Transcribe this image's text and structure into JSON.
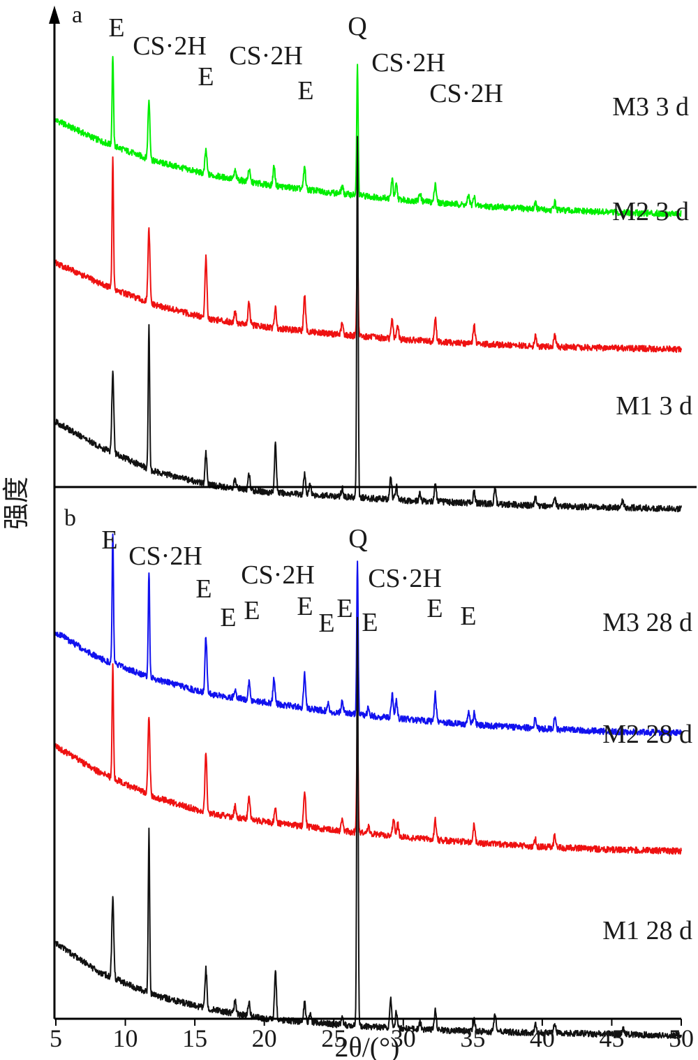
{
  "chart_data": {
    "type": "line",
    "xlabel": "2θ/(°)",
    "ylabel": "强度",
    "xlim": [
      5,
      50
    ],
    "x_ticks": [
      5,
      10,
      15,
      20,
      25,
      30,
      35,
      40,
      45,
      50
    ],
    "grid": false,
    "panels": [
      {
        "label": "a",
        "series": [
          {
            "name": "M3 3 d",
            "color": "#00ee00",
            "baseline": [
              [
                5,
                0.79
              ],
              [
                8,
                0.65
              ],
              [
                12,
                0.5
              ],
              [
                16,
                0.4
              ],
              [
                20,
                0.33
              ],
              [
                25,
                0.27
              ],
              [
                30,
                0.22
              ],
              [
                35,
                0.18
              ],
              [
                40,
                0.15
              ],
              [
                45,
                0.13
              ],
              [
                50,
                0.12
              ]
            ],
            "peaks": [
              [
                9.1,
                0.65
              ],
              [
                11.7,
                0.42
              ],
              [
                15.8,
                0.17
              ],
              [
                17.9,
                0.06
              ],
              [
                18.9,
                0.09
              ],
              [
                20.7,
                0.14
              ],
              [
                22.9,
                0.16
              ],
              [
                25.6,
                0.05
              ],
              [
                26.7,
                0.93
              ],
              [
                29.2,
                0.14
              ],
              [
                29.5,
                0.1
              ],
              [
                31.2,
                0.06
              ],
              [
                32.3,
                0.14
              ],
              [
                34.7,
                0.07
              ],
              [
                35.1,
                0.06
              ],
              [
                39.5,
                0.05
              ],
              [
                40.9,
                0.06
              ]
            ]
          },
          {
            "name": "M2 3 d",
            "color": "#ee1111",
            "baseline": [
              [
                5,
                0.87
              ],
              [
                8,
                0.73
              ],
              [
                12,
                0.57
              ],
              [
                16,
                0.47
              ],
              [
                20,
                0.41
              ],
              [
                25,
                0.36
              ],
              [
                30,
                0.32
              ],
              [
                35,
                0.29
              ],
              [
                40,
                0.27
              ],
              [
                45,
                0.26
              ],
              [
                50,
                0.25
              ]
            ],
            "peaks": [
              [
                9.1,
                0.94
              ],
              [
                11.7,
                0.52
              ],
              [
                15.8,
                0.43
              ],
              [
                17.9,
                0.09
              ],
              [
                18.9,
                0.16
              ],
              [
                20.8,
                0.14
              ],
              [
                22.9,
                0.25
              ],
              [
                25.6,
                0.08
              ],
              [
                26.7,
                0.63
              ],
              [
                29.2,
                0.14
              ],
              [
                29.6,
                0.1
              ],
              [
                32.3,
                0.17
              ],
              [
                35.1,
                0.14
              ],
              [
                39.5,
                0.07
              ],
              [
                40.9,
                0.08
              ]
            ]
          },
          {
            "name": "M1 3 d",
            "color": "#111111",
            "baseline": [
              [
                5,
                0.78
              ],
              [
                8,
                0.61
              ],
              [
                12,
                0.43
              ],
              [
                16,
                0.33
              ],
              [
                20,
                0.28
              ],
              [
                25,
                0.25
              ],
              [
                30,
                0.22
              ],
              [
                35,
                0.2
              ],
              [
                40,
                0.18
              ],
              [
                45,
                0.17
              ],
              [
                50,
                0.16
              ]
            ],
            "peaks": [
              [
                9.1,
                0.57
              ],
              [
                11.7,
                1.02
              ],
              [
                15.8,
                0.22
              ],
              [
                17.9,
                0.07
              ],
              [
                18.9,
                0.11
              ],
              [
                20.8,
                0.34
              ],
              [
                22.9,
                0.14
              ],
              [
                23.3,
                0.08
              ],
              [
                25.6,
                0.06
              ],
              [
                26.7,
                2.58
              ],
              [
                29.1,
                0.16
              ],
              [
                29.5,
                0.1
              ],
              [
                31.2,
                0.05
              ],
              [
                32.3,
                0.13
              ],
              [
                35.1,
                0.08
              ],
              [
                36.6,
                0.12
              ],
              [
                39.5,
                0.06
              ],
              [
                40.9,
                0.06
              ],
              [
                45.8,
                0.05
              ]
            ]
          }
        ],
        "annotations": [
          "E",
          "CS·2H",
          "E",
          "CS·2H",
          "E",
          "Q",
          "CS·2H",
          "CS·2H"
        ]
      },
      {
        "label": "b",
        "series": [
          {
            "name": "M3 28 d",
            "color": "#1111ee",
            "baseline": [
              [
                5,
                0.9
              ],
              [
                8,
                0.72
              ],
              [
                12,
                0.57
              ],
              [
                16,
                0.46
              ],
              [
                20,
                0.4
              ],
              [
                25,
                0.33
              ],
              [
                30,
                0.28
              ],
              [
                35,
                0.24
              ],
              [
                40,
                0.21
              ],
              [
                45,
                0.19
              ],
              [
                50,
                0.18
              ]
            ],
            "peaks": [
              [
                9.1,
                0.93
              ],
              [
                11.7,
                0.76
              ],
              [
                15.8,
                0.4
              ],
              [
                17.9,
                0.06
              ],
              [
                18.9,
                0.13
              ],
              [
                20.7,
                0.19
              ],
              [
                22.9,
                0.24
              ],
              [
                24.6,
                0.06
              ],
              [
                25.6,
                0.09
              ],
              [
                26.7,
                1.11
              ],
              [
                27.5,
                0.06
              ],
              [
                29.2,
                0.17
              ],
              [
                29.5,
                0.13
              ],
              [
                32.3,
                0.2
              ],
              [
                34.7,
                0.1
              ],
              [
                35.1,
                0.08
              ],
              [
                39.5,
                0.07
              ],
              [
                40.9,
                0.09
              ]
            ]
          },
          {
            "name": "M2 28 d",
            "color": "#ee1111",
            "baseline": [
              [
                5,
                0.91
              ],
              [
                8,
                0.73
              ],
              [
                12,
                0.55
              ],
              [
                16,
                0.43
              ],
              [
                20,
                0.37
              ],
              [
                25,
                0.31
              ],
              [
                30,
                0.26
              ],
              [
                35,
                0.22
              ],
              [
                40,
                0.19
              ],
              [
                45,
                0.17
              ],
              [
                50,
                0.16
              ]
            ],
            "peaks": [
              [
                9.1,
                0.81
              ],
              [
                11.7,
                0.55
              ],
              [
                15.8,
                0.43
              ],
              [
                17.9,
                0.08
              ],
              [
                18.9,
                0.16
              ],
              [
                20.8,
                0.12
              ],
              [
                22.9,
                0.26
              ],
              [
                25.6,
                0.07
              ],
              [
                26.7,
                0.82
              ],
              [
                27.5,
                0.05
              ],
              [
                29.3,
                0.12
              ],
              [
                29.6,
                0.09
              ],
              [
                32.3,
                0.14
              ],
              [
                35.1,
                0.13
              ],
              [
                39.5,
                0.05
              ],
              [
                40.9,
                0.09
              ]
            ]
          },
          {
            "name": "M1 28 d",
            "color": "#111111",
            "baseline": [
              [
                5,
                0.8
              ],
              [
                8,
                0.6
              ],
              [
                12,
                0.43
              ],
              [
                16,
                0.33
              ],
              [
                20,
                0.26
              ],
              [
                25,
                0.22
              ],
              [
                30,
                0.19
              ],
              [
                35,
                0.17
              ],
              [
                40,
                0.16
              ],
              [
                45,
                0.15
              ],
              [
                50,
                0.14
              ]
            ],
            "peaks": [
              [
                9.1,
                0.56
              ],
              [
                11.7,
                1.16
              ],
              [
                15.8,
                0.28
              ],
              [
                17.9,
                0.09
              ],
              [
                18.9,
                0.1
              ],
              [
                20.8,
                0.35
              ],
              [
                22.9,
                0.14
              ],
              [
                23.3,
                0.07
              ],
              [
                25.6,
                0.06
              ],
              [
                26.7,
                2.93
              ],
              [
                29.1,
                0.2
              ],
              [
                29.5,
                0.12
              ],
              [
                31.2,
                0.05
              ],
              [
                32.3,
                0.14
              ],
              [
                35.1,
                0.08
              ],
              [
                36.6,
                0.13
              ],
              [
                39.5,
                0.06
              ],
              [
                40.9,
                0.06
              ],
              [
                45.8,
                0.05
              ]
            ]
          }
        ],
        "annotations": [
          "E",
          "CS·2H",
          "E",
          "E",
          "E",
          "CS·2H",
          "E",
          "E",
          "E",
          "Q",
          "E",
          "CS·2H",
          "E",
          "E"
        ]
      }
    ]
  }
}
